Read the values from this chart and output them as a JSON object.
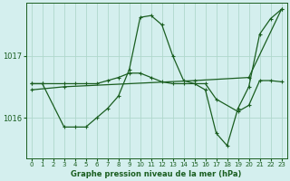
{
  "title": "Graphe pression niveau de la mer (hPa)",
  "bg_color": "#d4efee",
  "grid_color": "#b0d8cc",
  "line_color": "#1a5e20",
  "ylim": [
    1015.35,
    1017.85
  ],
  "xlim": [
    -0.5,
    23.5
  ],
  "yticks": [
    1016,
    1017
  ],
  "xticks": [
    0,
    1,
    2,
    3,
    4,
    5,
    6,
    7,
    8,
    9,
    10,
    11,
    12,
    13,
    14,
    15,
    16,
    17,
    18,
    19,
    20,
    21,
    22,
    23
  ],
  "series": [
    {
      "x": [
        0,
        3,
        15,
        20,
        23
      ],
      "y": [
        1016.45,
        1016.5,
        1016.6,
        1016.65,
        1017.75
      ]
    },
    {
      "x": [
        0,
        1,
        3,
        4,
        5,
        6,
        7,
        8,
        9,
        10,
        11,
        12,
        13,
        14,
        15,
        16,
        17,
        19,
        20,
        21,
        22,
        23
      ],
      "y": [
        1016.55,
        1016.55,
        1016.55,
        1016.55,
        1016.55,
        1016.55,
        1016.6,
        1016.65,
        1016.72,
        1016.72,
        1016.65,
        1016.58,
        1016.55,
        1016.55,
        1016.55,
        1016.55,
        1016.3,
        1016.1,
        1016.2,
        1016.6,
        1016.6,
        1016.58
      ]
    },
    {
      "x": [
        0,
        1,
        3,
        4,
        5,
        6,
        7,
        8,
        9,
        10,
        11,
        12,
        13,
        14,
        15,
        16,
        17,
        18,
        19,
        20,
        21,
        22,
        23
      ],
      "y": [
        1016.55,
        1016.55,
        1015.85,
        1015.85,
        1015.85,
        1016.0,
        1016.15,
        1016.35,
        1016.78,
        1017.62,
        1017.65,
        1017.5,
        1017.0,
        1016.6,
        1016.55,
        1016.45,
        1015.75,
        1015.55,
        1016.15,
        1016.5,
        1017.35,
        1017.6,
        1017.75
      ]
    }
  ]
}
